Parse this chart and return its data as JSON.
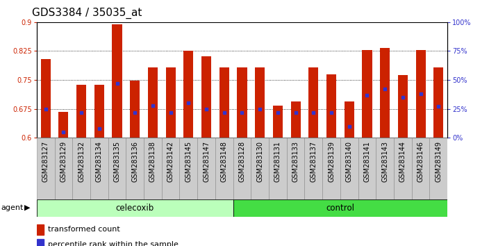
{
  "title": "GDS3384 / 35035_at",
  "samples": [
    "GSM283127",
    "GSM283129",
    "GSM283132",
    "GSM283134",
    "GSM283135",
    "GSM283136",
    "GSM283138",
    "GSM283142",
    "GSM283145",
    "GSM283147",
    "GSM283148",
    "GSM283128",
    "GSM283130",
    "GSM283131",
    "GSM283133",
    "GSM283137",
    "GSM283139",
    "GSM283140",
    "GSM283141",
    "GSM283143",
    "GSM283144",
    "GSM283146",
    "GSM283149"
  ],
  "bar_values": [
    0.805,
    0.668,
    0.738,
    0.737,
    0.895,
    0.748,
    0.782,
    0.782,
    0.825,
    0.812,
    0.782,
    0.782,
    0.782,
    0.684,
    0.695,
    0.782,
    0.764,
    0.694,
    0.827,
    0.833,
    0.763,
    0.827,
    0.782
  ],
  "percentile_values_pct": [
    25,
    5,
    22,
    8,
    47,
    22,
    28,
    22,
    30,
    25,
    22,
    22,
    25,
    22,
    22,
    22,
    22,
    10,
    37,
    42,
    35,
    38,
    27
  ],
  "group1_label": "celecoxib",
  "group2_label": "control",
  "group1_count": 11,
  "group2_count": 12,
  "ymin": 0.6,
  "ymax": 0.9,
  "yticks": [
    0.6,
    0.675,
    0.75,
    0.825,
    0.9
  ],
  "ytick_labels": [
    "0.6",
    "0.675",
    "0.75",
    "0.825",
    "0.9"
  ],
  "right_ytick_pcts": [
    0,
    25,
    50,
    75,
    100
  ],
  "bar_color": "#cc2200",
  "dot_color": "#3333cc",
  "group1_bg": "#bbffbb",
  "group2_bg": "#44dd44",
  "xlabel_bg": "#cccccc",
  "agent_label": "agent",
  "legend_bar_label": "transformed count",
  "legend_dot_label": "percentile rank within the sample",
  "title_fontsize": 11,
  "tick_fontsize": 7,
  "bar_width": 0.55
}
